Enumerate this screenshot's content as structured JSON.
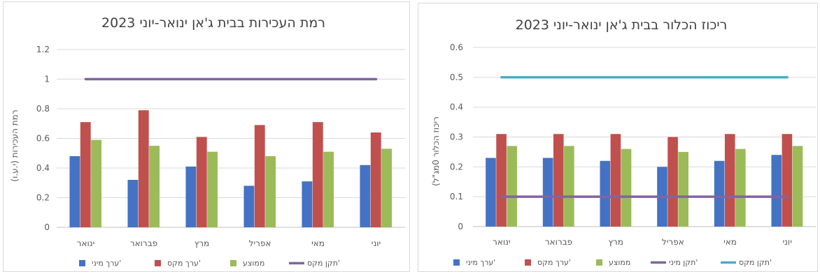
{
  "chart_data": [
    {
      "type": "bar",
      "title": "רמת העכירות בבית ג'אן ינואר-יוני 2023",
      "ylabel": "רמת העכירות (י.ע.ו)",
      "xlabel": "",
      "ylim": [
        0,
        1.2
      ],
      "yticks": [
        0,
        0.2,
        0.4,
        0.6,
        0.8,
        1,
        1.2
      ],
      "ytick_labels": [
        "0",
        "0.2",
        "0.4",
        "0.6",
        "0.8",
        "1",
        "1.2"
      ],
      "categories": [
        "ינואר",
        "פברואר",
        "מרץ",
        "אפריל",
        "מאי",
        "יוני"
      ],
      "grid": true,
      "legend_position": "bottom",
      "series": [
        {
          "name": "ערך מיני'",
          "kind": "bar",
          "color": "#4472C4",
          "values": [
            0.48,
            0.32,
            0.41,
            0.28,
            0.31,
            0.42
          ]
        },
        {
          "name": "ערך מקס'",
          "kind": "bar",
          "color": "#C0504D",
          "values": [
            0.71,
            0.79,
            0.61,
            0.69,
            0.71,
            0.64
          ]
        },
        {
          "name": "ממוצע",
          "kind": "bar",
          "color": "#9BBB59",
          "values": [
            0.59,
            0.55,
            0.51,
            0.48,
            0.51,
            0.53
          ]
        },
        {
          "name": "תקן מקס'",
          "kind": "line",
          "color": "#8064A2",
          "values": [
            1,
            1,
            1,
            1,
            1,
            1
          ]
        }
      ]
    },
    {
      "type": "bar",
      "title": "ריכוז הכלור בבית ג'אן ינואר-יוני 2023",
      "ylabel": "ריכוז הכלור 0מג\"ל)",
      "xlabel": "",
      "ylim": [
        0,
        0.6
      ],
      "yticks": [
        0,
        0.1,
        0.2,
        0.3,
        0.4,
        0.5,
        0.6
      ],
      "ytick_labels": [
        "0",
        "0.1",
        "0.2",
        "0.3",
        "0.4",
        "0.5",
        "0.6"
      ],
      "categories": [
        "ינואר",
        "פברואר",
        "מרץ",
        "אפריל",
        "מאי",
        "יוני"
      ],
      "grid": true,
      "legend_position": "bottom",
      "series": [
        {
          "name": "ערך מיני'",
          "kind": "bar",
          "color": "#4472C4",
          "values": [
            0.23,
            0.23,
            0.22,
            0.2,
            0.22,
            0.24
          ]
        },
        {
          "name": "ערך מקס'",
          "kind": "bar",
          "color": "#C0504D",
          "values": [
            0.31,
            0.31,
            0.31,
            0.3,
            0.31,
            0.31
          ]
        },
        {
          "name": "ממוצע",
          "kind": "bar",
          "color": "#9BBB59",
          "values": [
            0.27,
            0.27,
            0.26,
            0.25,
            0.26,
            0.27
          ]
        },
        {
          "name": "תקן מיני'",
          "kind": "line",
          "color": "#8064A2",
          "values": [
            0.1,
            0.1,
            0.1,
            0.1,
            0.1,
            0.1
          ]
        },
        {
          "name": "תקן מקס'",
          "kind": "line",
          "color": "#4BACC6",
          "values": [
            0.5,
            0.5,
            0.5,
            0.5,
            0.5,
            0.5
          ]
        }
      ]
    }
  ]
}
